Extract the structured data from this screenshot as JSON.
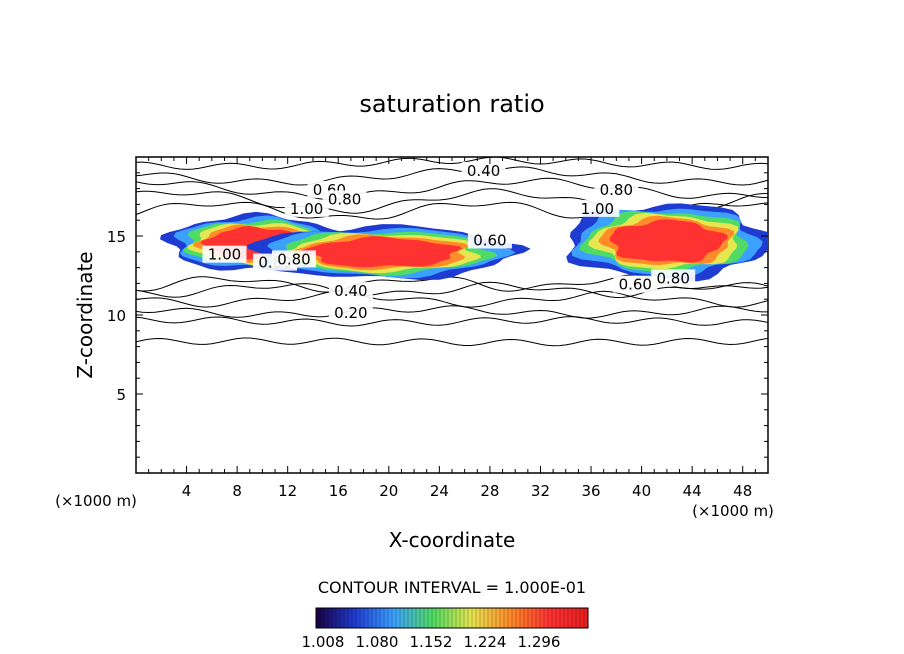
{
  "chart_data": {
    "type": "contour",
    "title": "saturation ratio",
    "xlabel": "X-coordinate",
    "ylabel": "Z-coordinate",
    "x_units_label": "(×1000 m)",
    "z_units_label": "(×1000 m)",
    "xlim": [
      0,
      50
    ],
    "ylim": [
      0,
      20
    ],
    "x_ticks": [
      4,
      8,
      12,
      16,
      20,
      24,
      28,
      32,
      36,
      40,
      44,
      48
    ],
    "y_ticks": [
      5,
      10,
      15
    ],
    "contour_interval_text": "CONTOUR INTERVAL = 1.000E-01",
    "contour_labels": [
      "0.40",
      "0.60",
      "0.80",
      "1.00",
      "0.80",
      "1.00",
      "0.80",
      "0.60",
      "0.40",
      "0.20",
      "0.80",
      "1.00",
      "0.60",
      "0.80"
    ],
    "colorbar": {
      "ticks": [
        "1.008",
        "1.080",
        "1.152",
        "1.224",
        "1.296"
      ],
      "colors": [
        "#1a0040",
        "#1e3cd2",
        "#3ca0ff",
        "#50dc64",
        "#e6e650",
        "#ff8c28",
        "#ff3232",
        "#e61e1e"
      ]
    },
    "supersaturated_regions": [
      {
        "x": [
          2.5,
          16.5
        ],
        "z": [
          12.8,
          16.3
        ]
      },
      {
        "x": [
          9,
          30
        ],
        "z": [
          12.3,
          15.6
        ]
      },
      {
        "x": [
          34,
          50
        ],
        "z": [
          12.3,
          17.0
        ]
      }
    ]
  }
}
